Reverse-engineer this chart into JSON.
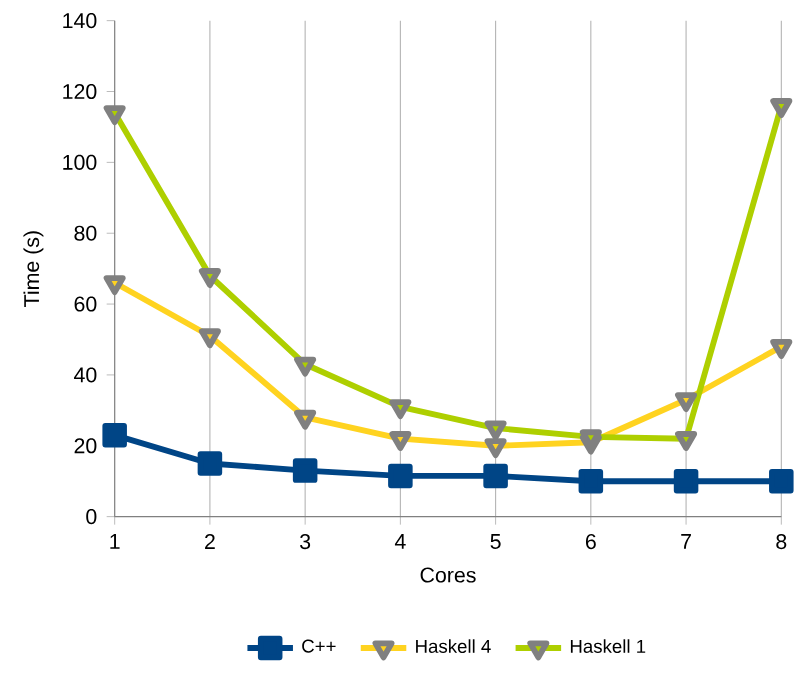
{
  "chart_data": {
    "type": "line",
    "xlabel": "Cores",
    "ylabel": "Time (s)",
    "x": [
      1,
      2,
      3,
      4,
      5,
      6,
      7,
      8
    ],
    "xlim": [
      1,
      8
    ],
    "xticks": [
      1,
      2,
      3,
      4,
      5,
      6,
      7,
      8
    ],
    "ylim": [
      0,
      140
    ],
    "yticks": [
      0,
      20,
      40,
      60,
      80,
      100,
      120,
      140
    ],
    "grid": "x",
    "legend": "bottom",
    "series": [
      {
        "name": "C++",
        "color": "#004586",
        "marker": "square",
        "values": [
          23,
          15,
          13,
          11.5,
          11.5,
          10,
          10,
          10
        ]
      },
      {
        "name": "Haskell 4",
        "color": "#ffd320",
        "marker": "triangle",
        "values": [
          66,
          51,
          28,
          22,
          20,
          21,
          33,
          48
        ]
      },
      {
        "name": "Haskell 1",
        "color": "#aecf00",
        "marker": "triangle",
        "values": [
          114,
          68,
          43,
          31,
          25,
          22.5,
          22,
          116
        ]
      }
    ]
  }
}
